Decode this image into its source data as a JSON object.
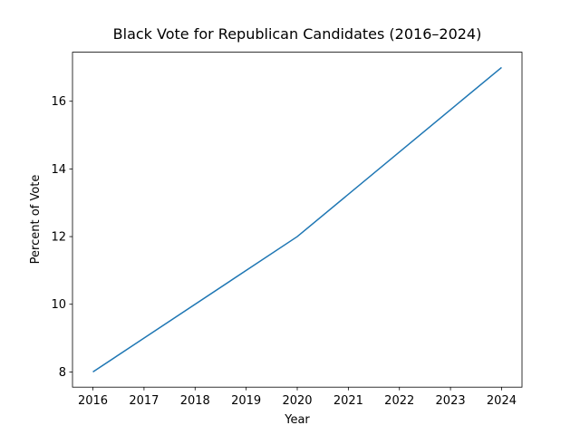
{
  "chart_data": {
    "type": "line",
    "title": "Black Vote for Republican Candidates (2016–2024)",
    "x_label": "Year",
    "y_label": "Percent of Vote",
    "x": [
      2016,
      2020,
      2024
    ],
    "series": [
      {
        "name": "Black Vote",
        "color": "#1f77b4",
        "values": [
          8,
          12,
          17
        ]
      }
    ],
    "xlim": [
      2015.6,
      2024.4
    ],
    "xticks": [
      2016,
      2017,
      2018,
      2019,
      2020,
      2021,
      2022,
      2023,
      2024
    ],
    "ylim": [
      7.55,
      17.45
    ],
    "yticks": [
      8,
      10,
      12,
      14,
      16
    ],
    "grid": false
  }
}
